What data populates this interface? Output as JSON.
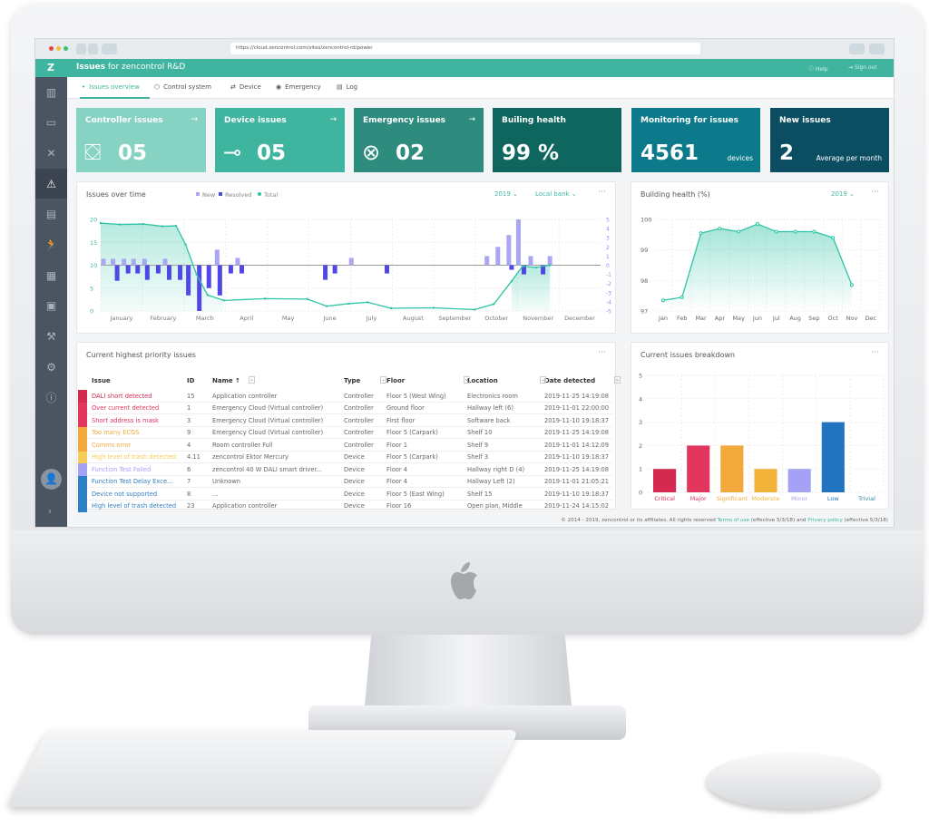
{
  "browser": {
    "url": "https://cloud.zencontrol.com/sites/zencontrol-rd/power"
  },
  "header": {
    "logo": "Z",
    "title_bold": "Issues",
    "title_rest": "for zencontrol R&D",
    "help": "Help",
    "sign_out": "Sign out"
  },
  "sidebar": {
    "items": [
      "building-icon",
      "monitor-icon",
      "tools-icon",
      "warning-icon",
      "report-icon",
      "emergency-run-icon",
      "floorplan-icon",
      "clipboard-icon",
      "wrench-icon",
      "gear-icon",
      "info-icon"
    ],
    "active": "warning-icon",
    "expand": "›"
  },
  "tabs": [
    {
      "label": "Issues overview",
      "active": true
    },
    {
      "label": "Control system"
    },
    {
      "label": "Device"
    },
    {
      "label": "Emergency"
    },
    {
      "label": "Log"
    }
  ],
  "cards": [
    {
      "title": "Controller issues",
      "value": "05",
      "color": "#86d3c3"
    },
    {
      "title": "Device issues",
      "value": "05",
      "color": "#3fb5a0"
    },
    {
      "title": "Emergency issues",
      "value": "02",
      "color": "#2e8c7e"
    },
    {
      "title": "Builing health",
      "value": "99 %",
      "color": "#0f665e"
    },
    {
      "title": "Monitoring for issues",
      "value": "4561",
      "sub": "devices",
      "color": "#0c7a8a"
    },
    {
      "title": "New issues",
      "value": "2",
      "sub": "Average per month",
      "color": "#0b4d61"
    }
  ],
  "issues_chart": {
    "title": "Issues over time",
    "year": "2019",
    "bank": "Local bank",
    "more": "···"
  },
  "health_chart": {
    "title": "Building health (%)",
    "year": "2019",
    "more": "···"
  },
  "breakdown_chart": {
    "title": "Current issues breakdown",
    "more": "···"
  },
  "chart_data": [
    {
      "type": "bar",
      "title": "Issues over time",
      "legend": [
        "New",
        "Resolved",
        "Total"
      ],
      "legend_placement": "top",
      "x_ticks": [
        "January",
        "February",
        "March",
        "April",
        "May",
        "June",
        "July",
        "August",
        "September",
        "October",
        "November",
        "December"
      ],
      "y_left": {
        "range": [
          0,
          20
        ],
        "ticks": [
          "0",
          "5",
          "10",
          "15",
          "20"
        ]
      },
      "y_right": {
        "range": [
          -5,
          5
        ],
        "ticks": [
          "5",
          "4",
          "3",
          "2",
          "1",
          "0",
          "-1",
          "-2",
          "-3",
          "-4",
          "-5"
        ]
      },
      "grid": true,
      "series": [
        {
          "name": "New",
          "type": "bar",
          "axis": "right",
          "color": "#a9a6f2",
          "points": [
            [
              "2019-01-03",
              0.7
            ],
            [
              "2019-01-10",
              0.7
            ],
            [
              "2019-01-18",
              0.7
            ],
            [
              "2019-01-25",
              0.7
            ],
            [
              "2019-02-02",
              0.7
            ],
            [
              "2019-02-17",
              0.7
            ],
            [
              "2019-03-27",
              1.7
            ],
            [
              "2019-04-11",
              0.8
            ],
            [
              "2019-07-03",
              0.8
            ],
            [
              "2019-10-10",
              1
            ],
            [
              "2019-10-18",
              2
            ],
            [
              "2019-10-26",
              3.3
            ],
            [
              "2019-11-02",
              5
            ],
            [
              "2019-11-11",
              1
            ],
            [
              "2019-11-25",
              1
            ]
          ]
        },
        {
          "name": "Resolved",
          "type": "bar",
          "axis": "right",
          "color": "#4f47e8",
          "points": [
            [
              "2019-01-13",
              -1.7
            ],
            [
              "2019-01-21",
              -0.9
            ],
            [
              "2019-01-28",
              -0.9
            ],
            [
              "2019-02-04",
              -1.6
            ],
            [
              "2019-02-12",
              -0.9
            ],
            [
              "2019-02-20",
              -1.6
            ],
            [
              "2019-02-28",
              -1.6
            ],
            [
              "2019-03-06",
              -3.3
            ],
            [
              "2019-03-14",
              -5
            ],
            [
              "2019-03-21",
              -2.5
            ],
            [
              "2019-03-29",
              -3.3
            ],
            [
              "2019-04-06",
              -0.9
            ],
            [
              "2019-04-14",
              -0.9
            ],
            [
              "2019-06-14",
              -1.6
            ],
            [
              "2019-06-21",
              -0.9
            ],
            [
              "2019-07-29",
              -0.9
            ],
            [
              "2019-10-28",
              -0.5
            ],
            [
              "2019-11-06",
              -1
            ],
            [
              "2019-11-20",
              -1
            ]
          ]
        },
        {
          "name": "Total",
          "type": "line",
          "axis": "left",
          "color": "#2fc4a4",
          "points": [
            [
              "2019-01-01",
              19.2
            ],
            [
              "2019-01-15",
              18.9
            ],
            [
              "2019-02-01",
              19
            ],
            [
              "2019-02-15",
              18.5
            ],
            [
              "2019-02-25",
              18.6
            ],
            [
              "2019-03-04",
              14.5
            ],
            [
              "2019-03-12",
              8
            ],
            [
              "2019-03-20",
              3.5
            ],
            [
              "2019-04-01",
              2.3
            ],
            [
              "2019-05-01",
              2.7
            ],
            [
              "2019-06-01",
              2.6
            ],
            [
              "2019-06-15",
              1.05
            ],
            [
              "2019-07-01",
              1.6
            ],
            [
              "2019-07-15",
              1.9
            ],
            [
              "2019-08-01",
              0.6
            ],
            [
              "2019-09-01",
              0.7
            ],
            [
              "2019-10-01",
              0.3
            ],
            [
              "2019-10-15",
              1.5
            ],
            [
              "2019-10-28",
              6.5
            ],
            [
              "2019-11-05",
              9.8
            ],
            [
              "2019-11-15",
              9.5
            ],
            [
              "2019-11-25",
              10
            ]
          ]
        }
      ]
    },
    {
      "type": "area",
      "title": "Building health (%)",
      "x": [
        "Jan",
        "Feb",
        "Mar",
        "Apr",
        "May",
        "Jun",
        "Jul",
        "Aug",
        "Sep",
        "Oct",
        "Nov",
        "Dec"
      ],
      "values": [
        97.35,
        97.45,
        99.55,
        99.7,
        99.6,
        99.85,
        99.6,
        99.6,
        99.6,
        99.4,
        97.85,
        null
      ],
      "ylim": [
        97,
        100
      ],
      "y_ticks": [
        "97",
        "98",
        "99",
        "100"
      ],
      "grid": true,
      "color": "#2fc4a4"
    },
    {
      "type": "bar",
      "title": "Current issues breakdown",
      "categories": [
        "Critical",
        "Major",
        "Significant",
        "Moderate",
        "Minor",
        "Low",
        "Trivial"
      ],
      "values": [
        1,
        2,
        2,
        1,
        1,
        3,
        0
      ],
      "ylim": [
        0,
        5
      ],
      "y_ticks": [
        "0",
        "1",
        "2",
        "3",
        "4",
        "5"
      ],
      "grid": true,
      "colors": [
        "#d42a52",
        "#e2365f",
        "#f2a93b",
        "#f2b33b",
        "#a5a2f5",
        "#2374c0",
        "#2d8a9a"
      ]
    }
  ],
  "table": {
    "title": "Current highest priority issues",
    "more": "···",
    "columns": [
      "Issue",
      "ID",
      "Name ↑",
      "Type",
      "Floor",
      "Location",
      "Date detected"
    ],
    "rows": [
      {
        "issue": "DALI short detected",
        "id": "15",
        "name": "Application controller",
        "type": "Controller",
        "floor": "Floor 5 (West Wing)",
        "location": "Electronics room",
        "date": "2019-11-25 14:19:08",
        "color": "#d42a52"
      },
      {
        "issue": "Over current detected",
        "id": "1",
        "name": "Emergency Cloud (Virtual controller)",
        "type": "Controller",
        "floor": "Ground floor",
        "location": "Hallway left (6)",
        "date": "2019-11-01 22:00:00",
        "color": "#e2365f"
      },
      {
        "issue": "Short address is mask",
        "id": "3",
        "name": "Emergency Cloud (Virtual controller)",
        "type": "Controller",
        "floor": "First floor",
        "location": "Software back",
        "date": "2019-11-10 19:18:37",
        "color": "#e2365f"
      },
      {
        "issue": "Too many ECGS",
        "id": "9",
        "name": "Emergency Cloud (Virtual controller)",
        "type": "Controller",
        "floor": "Floor 5 (Carpark)",
        "location": "Shelf 10",
        "date": "2019-11-25 14:19:08",
        "color": "#f2a93b"
      },
      {
        "issue": "Comms error",
        "id": "4",
        "name": "Room controller Full",
        "type": "Controller",
        "floor": "Floor 1",
        "location": "Shelf 9",
        "date": "2019-11-01 14:12:09",
        "color": "#f2a93b"
      },
      {
        "issue": "High level of trash detected",
        "id": "4.11",
        "name": "zencontrol Ektor Mercury",
        "type": "Device",
        "floor": "Floor 5 (Carpark)",
        "location": "Shelf 3",
        "date": "2019-11-10 19:18:37",
        "color": "#f5cd5a"
      },
      {
        "issue": "Function Test Failed",
        "id": "6",
        "name": "zencontrol 40 W DALI smart driver...",
        "type": "Device",
        "floor": "Floor 4",
        "location": "Hallway right D (4)",
        "date": "2019-11-25 14:19:08",
        "color": "#a5a2f5"
      },
      {
        "issue": "Function Test Delay Exce...",
        "id": "7",
        "name": "Unknown",
        "type": "Device",
        "floor": "Floor 4",
        "location": "Hallway Left (2)",
        "date": "2019-11-01 21:05:21",
        "color": "#2f7fc4"
      },
      {
        "issue": "Device not supported",
        "id": "8",
        "name": "...",
        "type": "Device",
        "floor": "Floor 5 (East Wing)",
        "location": "Shelf 15",
        "date": "2019-11-10 19:18:37",
        "color": "#2f7fc4"
      },
      {
        "issue": "High level of trash detected",
        "id": "23",
        "name": "Application controller",
        "type": "Device",
        "floor": "Floor 16",
        "location": "Open plan, Middle",
        "date": "2019-11-24 14:15:02",
        "color": "#2f7fc4"
      }
    ]
  },
  "footer": {
    "copyright": "© 2014 - 2019, zencontrol or its affiliates. All rights reserved",
    "terms": "Terms of use",
    "terms_eff": "(effective 5/3/18) and",
    "privacy": "Privacy policy",
    "privacy_eff": "(effective 5/3/18)"
  }
}
